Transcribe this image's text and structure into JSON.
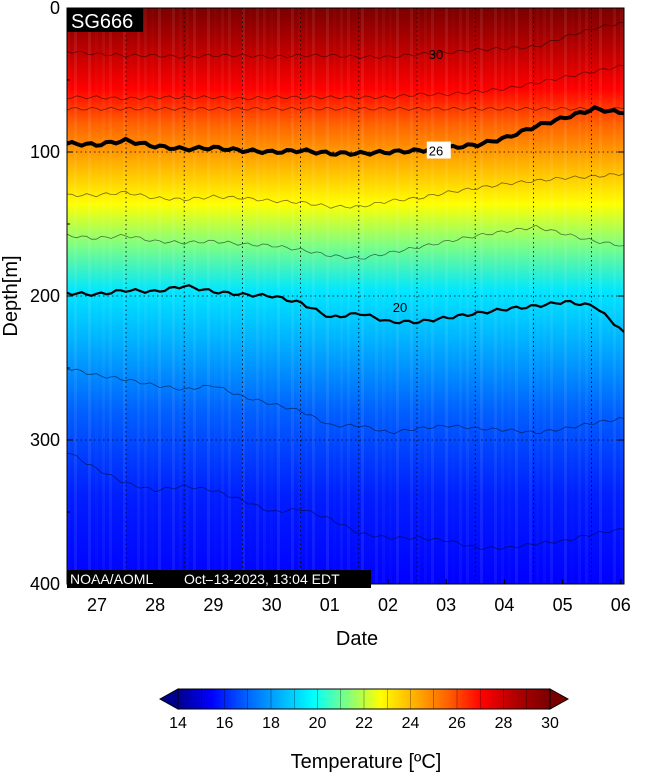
{
  "chart_data": {
    "type": "heatmap",
    "title": "SG666",
    "xlabel": "Date",
    "ylabel": "Depth[m]",
    "credit": "NOAA/AOML",
    "timestamp": "Oct–13‑2023, 13:04 EDT",
    "x_ticks": [
      "27",
      "28",
      "29",
      "30",
      "01",
      "02",
      "03",
      "04",
      "05",
      "06"
    ],
    "y_ticks": [
      0,
      100,
      200,
      300,
      400
    ],
    "ylim": [
      400,
      0
    ],
    "grid": true,
    "colorbar": {
      "label": "Temperature [ºC]",
      "range": [
        14,
        30
      ],
      "ticks": [
        14,
        16,
        18,
        20,
        22,
        24,
        26,
        28,
        30
      ],
      "colors": [
        "#00008f",
        "#0000ff",
        "#0060ff",
        "#00b0ff",
        "#00ffff",
        "#80ff80",
        "#ffff00",
        "#ffb000",
        "#ff6000",
        "#ff0000",
        "#b00000",
        "#7a0000"
      ]
    },
    "contours": [
      {
        "label": "30",
        "bold": false,
        "depths": [
          30,
          32,
          33,
          33,
          34,
          33,
          33,
          34,
          33,
          33,
          34,
          34,
          32,
          31,
          29,
          28,
          27,
          20,
          14,
          10
        ]
      },
      {
        "label": "",
        "bold": false,
        "depths": [
          62,
          62,
          63,
          62,
          62,
          62,
          63,
          62,
          62,
          62,
          62,
          62,
          60,
          60,
          58,
          56,
          52,
          48,
          44,
          40
        ]
      },
      {
        "label": "",
        "bold": false,
        "depths": [
          70,
          70,
          70,
          70,
          70,
          70,
          70,
          70,
          70,
          70,
          70,
          70,
          70,
          70,
          70,
          70,
          70,
          70,
          70,
          70
        ]
      },
      {
        "label": "26",
        "bold": true,
        "depths": [
          94,
          95,
          92,
          96,
          98,
          97,
          99,
          100,
          99,
          101,
          101,
          100,
          99,
          97,
          95,
          90,
          82,
          76,
          70,
          73
        ]
      },
      {
        "label": "",
        "bold": false,
        "depths": [
          130,
          130,
          128,
          132,
          133,
          131,
          132,
          134,
          135,
          138,
          138,
          134,
          132,
          128,
          125,
          122,
          120,
          118,
          117,
          115
        ]
      },
      {
        "label": "",
        "bold": false,
        "depths": [
          158,
          160,
          158,
          162,
          163,
          162,
          164,
          165,
          168,
          172,
          174,
          170,
          166,
          162,
          158,
          155,
          152,
          157,
          162,
          165
        ]
      },
      {
        "label": "20",
        "bold": true,
        "depths": [
          198,
          199,
          196,
          197,
          193,
          197,
          199,
          200,
          205,
          215,
          212,
          218,
          218,
          215,
          212,
          209,
          207,
          204,
          207,
          225
        ]
      },
      {
        "label": "",
        "bold": false,
        "depths": [
          250,
          255,
          258,
          262,
          265,
          262,
          270,
          275,
          280,
          290,
          290,
          295,
          292,
          290,
          292,
          293,
          295,
          292,
          288,
          285
        ]
      },
      {
        "label": "",
        "bold": false,
        "depths": [
          308,
          320,
          330,
          335,
          332,
          335,
          342,
          350,
          348,
          355,
          365,
          368,
          368,
          370,
          375,
          375,
          372,
          370,
          365,
          362
        ]
      }
    ]
  }
}
